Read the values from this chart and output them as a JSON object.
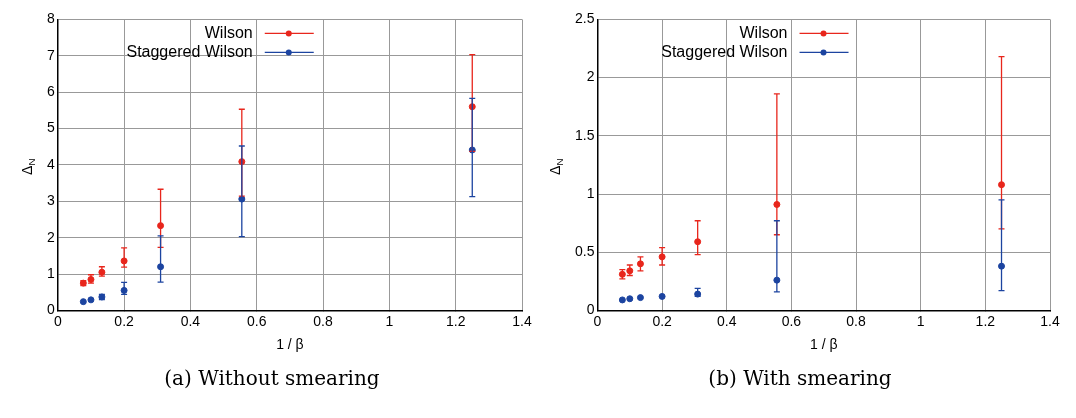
{
  "chart_data": [
    {
      "type": "scatter",
      "xlabel": "1 / β",
      "ylabel": "Δ$_{N}$",
      "x": [
        0.077,
        0.1,
        0.133,
        0.2,
        0.31,
        0.555,
        1.25
      ],
      "xlim": [
        0,
        1.4
      ],
      "xticks": [
        0,
        0.2,
        0.4,
        0.6,
        0.8,
        1,
        1.2,
        1.4
      ],
      "ylim": [
        0,
        8
      ],
      "yticks": [
        0,
        1,
        2,
        3,
        4,
        5,
        6,
        7,
        8
      ],
      "grid": true,
      "legend": "top",
      "marker": "circle",
      "annotations": [
        "(a) Without smearing"
      ],
      "series": [
        {
          "name": "Wilson",
          "color": "#e8261c",
          "values": [
            0.75,
            0.85,
            1.05,
            1.36,
            2.33,
            4.09,
            5.6
          ],
          "errors": [
            [
              0.68,
              0.82
            ],
            [
              0.75,
              0.98
            ],
            [
              0.94,
              1.2
            ],
            [
              1.19,
              1.72
            ],
            [
              1.73,
              3.33
            ],
            [
              3.14,
              5.53
            ],
            [
              4.37,
              7.03
            ]
          ]
        },
        {
          "name": "Staggered Wilson",
          "color": "#1c44a0",
          "values": [
            0.24,
            0.29,
            0.37,
            0.55,
            1.2,
            3.06,
            4.41
          ],
          "errors": [
            null,
            null,
            [
              0.3,
              0.44
            ],
            [
              0.44,
              0.77
            ],
            [
              0.78,
              2.05
            ],
            [
              2.03,
              4.52
            ],
            [
              3.13,
              5.83
            ]
          ]
        }
      ]
    },
    {
      "type": "scatter",
      "xlabel": "1 / β",
      "ylabel": "Δ$_{N}$",
      "x": [
        0.077,
        0.1,
        0.133,
        0.2,
        0.31,
        0.555,
        1.25
      ],
      "xlim": [
        0,
        1.4
      ],
      "xticks": [
        0,
        0.2,
        0.4,
        0.6,
        0.8,
        1,
        1.2,
        1.4
      ],
      "ylim": [
        0,
        2.5
      ],
      "yticks": [
        0,
        0.5,
        1,
        1.5,
        2,
        2.5
      ],
      "grid": true,
      "legend": "top",
      "marker": "circle",
      "annotations": [
        "(b) With smearing"
      ],
      "series": [
        {
          "name": "Wilson",
          "color": "#e8261c",
          "values": [
            0.31,
            0.34,
            0.4,
            0.46,
            0.59,
            0.91,
            1.08
          ],
          "errors": [
            [
              0.27,
              0.35
            ],
            [
              0.3,
              0.39
            ],
            [
              0.34,
              0.46
            ],
            [
              0.39,
              0.54
            ],
            [
              0.48,
              0.77
            ],
            [
              0.65,
              1.86
            ],
            [
              0.7,
              2.18
            ]
          ]
        },
        {
          "name": "Staggered Wilson",
          "color": "#1c44a0",
          "values": [
            0.09,
            0.1,
            0.11,
            0.12,
            0.14,
            0.26,
            0.38
          ],
          "errors": [
            null,
            null,
            null,
            null,
            [
              0.12,
              0.19
            ],
            [
              0.16,
              0.77
            ],
            [
              0.17,
              0.95
            ]
          ]
        }
      ]
    }
  ]
}
